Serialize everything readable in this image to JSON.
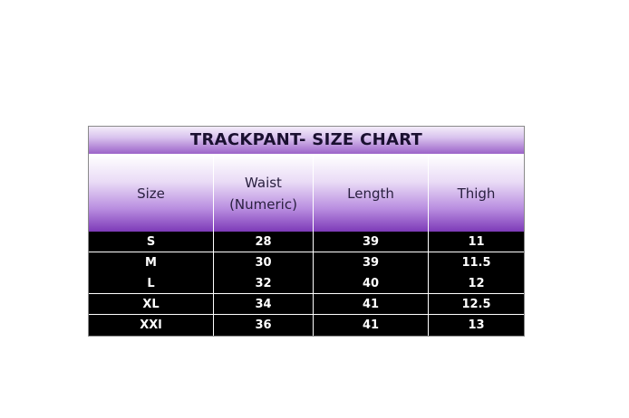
{
  "title": "TRACKPANT- SIZE CHART",
  "headers": [
    "Size",
    "Waist\n(Numeric)",
    "Length",
    "Thigh"
  ],
  "rows": [
    [
      "S",
      "28",
      "39",
      "11"
    ],
    [
      "M",
      "30",
      "39",
      "11.5"
    ],
    [
      "L",
      "32",
      "40",
      "12"
    ],
    [
      "XL",
      "34",
      "41",
      "12.5"
    ],
    [
      "XXl",
      "36",
      "41",
      "13"
    ]
  ],
  "colors": {
    "header_purple": "#7d3ab8",
    "row_background": "#000000",
    "row_text": "#ffffff"
  }
}
